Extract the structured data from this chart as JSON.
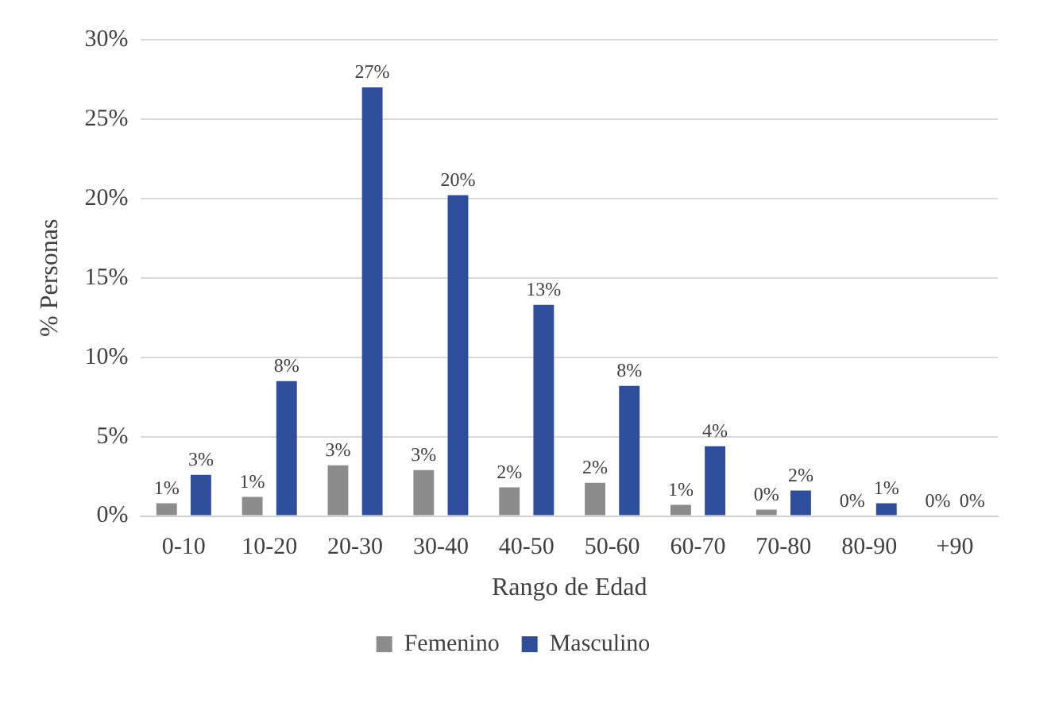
{
  "chart_data": {
    "type": "bar",
    "xlabel": "Rango de Edad",
    "ylabel": "% Personas",
    "categories": [
      "0-10",
      "10-20",
      "20-30",
      "30-40",
      "40-50",
      "50-60",
      "60-70",
      "70-80",
      "80-90",
      "+90"
    ],
    "series": [
      {
        "name": "Femenino",
        "color": "#8c8c8c",
        "values": [
          0.8,
          1.2,
          3.2,
          2.9,
          1.8,
          2.1,
          0.7,
          0.4,
          0,
          0
        ],
        "value_labels": [
          "1%",
          "1%",
          "3%",
          "3%",
          "2%",
          "2%",
          "1%",
          "0%",
          "0%",
          "0%"
        ]
      },
      {
        "name": "Masculino",
        "color": "#2e4d9a",
        "values": [
          2.6,
          8.5,
          27,
          20.2,
          13.3,
          8.2,
          4.4,
          1.6,
          0.8,
          0
        ],
        "value_labels": [
          "3%",
          "8%",
          "27%",
          "20%",
          "13%",
          "8%",
          "4%",
          "2%",
          "1%",
          "0%"
        ]
      }
    ],
    "ylim": [
      0,
      30
    ],
    "yticks": [
      {
        "value": 0,
        "label": "0%"
      },
      {
        "value": 5,
        "label": "5%"
      },
      {
        "value": 10,
        "label": "10%"
      },
      {
        "value": 15,
        "label": "15%"
      },
      {
        "value": 20,
        "label": "20%"
      },
      {
        "value": 25,
        "label": "25%"
      },
      {
        "value": 30,
        "label": "30%"
      }
    ],
    "grid": "y",
    "legend": "bottom"
  }
}
